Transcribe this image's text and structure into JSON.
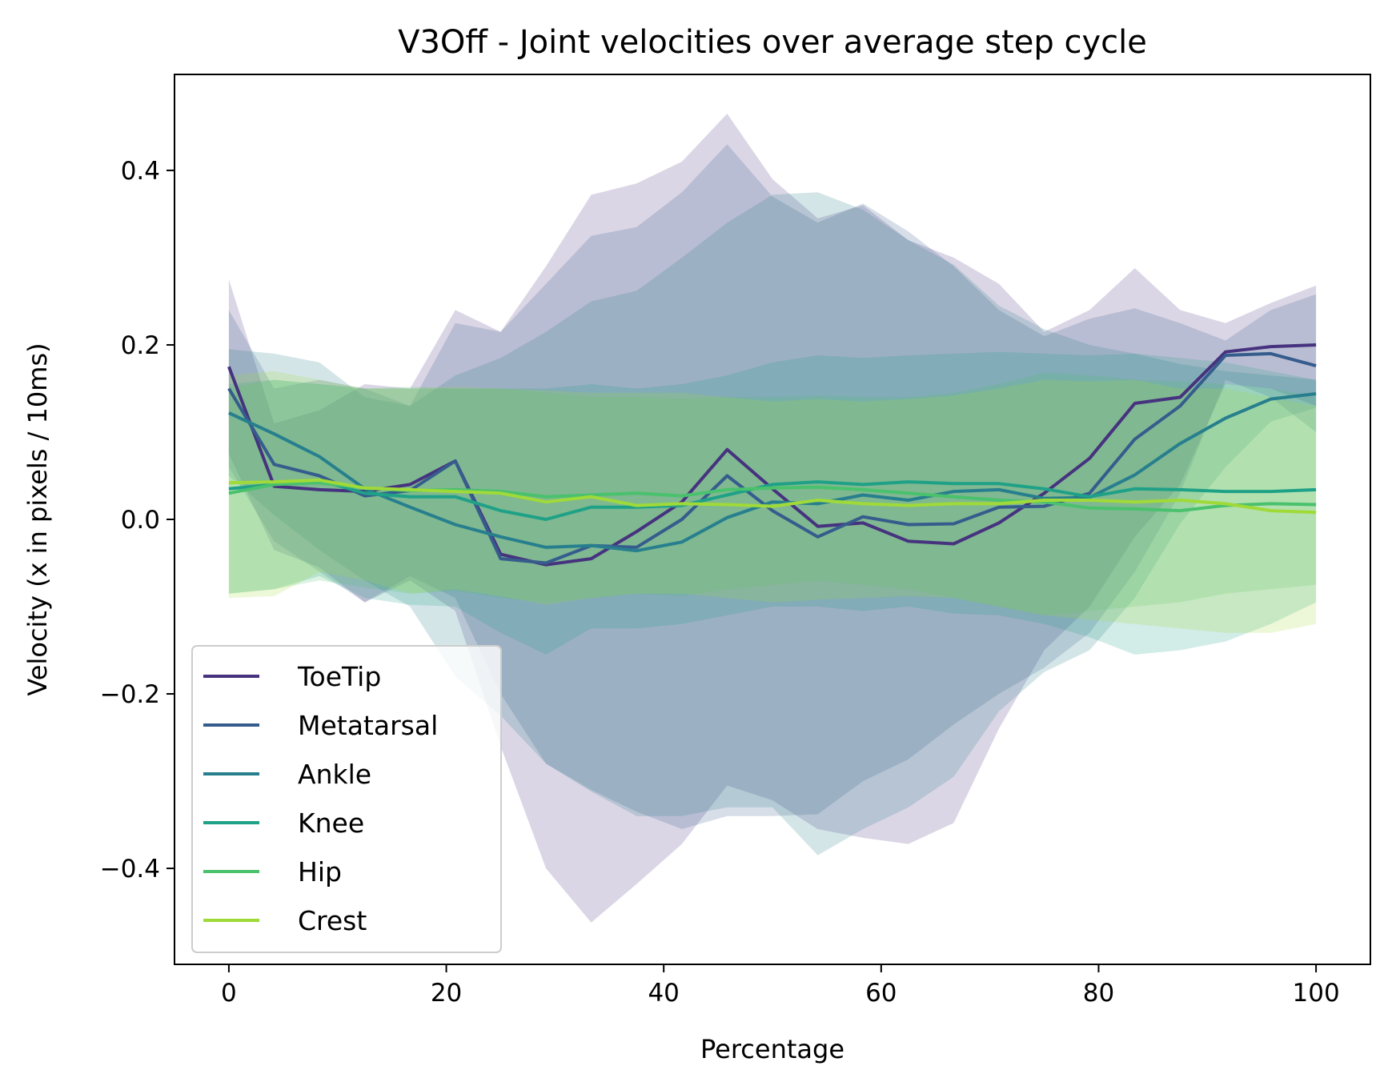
{
  "chart_data": {
    "type": "line",
    "title": "V3Off - Joint velocities over average step cycle",
    "xlabel": "Percentage",
    "ylabel": "Velocity (x in pixels / 10ms)",
    "xlim": [
      -5,
      105
    ],
    "ylim": [
      -0.51,
      0.51
    ],
    "xticks": [
      0,
      20,
      40,
      60,
      80,
      100
    ],
    "yticks": [
      -0.4,
      -0.2,
      0.0,
      0.2,
      0.4
    ],
    "xtick_labels": [
      "0",
      "20",
      "40",
      "60",
      "80",
      "100"
    ],
    "ytick_labels": [
      "−0.4",
      "−0.2",
      "0.0",
      "0.2",
      "0.4"
    ],
    "grid": false,
    "legend_position": "lower-left",
    "x": [
      0,
      4.17,
      8.33,
      12.5,
      16.67,
      20.83,
      25,
      29.17,
      33.33,
      37.5,
      41.67,
      45.83,
      50,
      54.17,
      58.33,
      62.5,
      66.67,
      70.83,
      75,
      79.17,
      83.33,
      87.5,
      91.67,
      95.83,
      100
    ],
    "series": [
      {
        "name": "ToeTip",
        "color": "#46327e",
        "values": [
          0.175,
          0.038,
          0.034,
          0.032,
          0.04,
          0.067,
          -0.04,
          -0.052,
          -0.045,
          -0.014,
          0.02,
          0.08,
          0.035,
          -0.008,
          -0.004,
          -0.025,
          -0.028,
          -0.004,
          0.03,
          0.07,
          0.133,
          0.14,
          0.192,
          0.198,
          0.2
        ],
        "upper": [
          0.275,
          0.11,
          0.125,
          0.155,
          0.15,
          0.24,
          0.215,
          0.29,
          0.372,
          0.385,
          0.41,
          0.465,
          0.39,
          0.345,
          0.36,
          0.32,
          0.3,
          0.27,
          0.215,
          0.24,
          0.288,
          0.24,
          0.225,
          0.248,
          0.268
        ],
        "lower": [
          0.075,
          -0.035,
          -0.055,
          -0.095,
          -0.07,
          -0.105,
          -0.26,
          -0.4,
          -0.462,
          -0.418,
          -0.372,
          -0.305,
          -0.322,
          -0.355,
          -0.365,
          -0.372,
          -0.348,
          -0.24,
          -0.15,
          -0.1,
          -0.02,
          0.04,
          0.155,
          0.15,
          0.13
        ]
      },
      {
        "name": "Metatarsal",
        "color": "#365c8d",
        "values": [
          0.15,
          0.063,
          0.05,
          0.027,
          0.033,
          0.067,
          -0.045,
          -0.05,
          -0.03,
          -0.032,
          0.0,
          0.05,
          0.01,
          -0.02,
          0.003,
          -0.006,
          -0.005,
          0.014,
          0.015,
          0.03,
          0.092,
          0.13,
          0.188,
          0.19,
          0.176
        ],
        "upper": [
          0.24,
          0.15,
          0.16,
          0.15,
          0.13,
          0.225,
          0.215,
          0.27,
          0.325,
          0.335,
          0.375,
          0.43,
          0.37,
          0.34,
          0.362,
          0.33,
          0.29,
          0.24,
          0.21,
          0.23,
          0.242,
          0.225,
          0.205,
          0.24,
          0.258
        ],
        "lower": [
          0.06,
          -0.025,
          -0.06,
          -0.095,
          -0.065,
          -0.09,
          -0.2,
          -0.28,
          -0.31,
          -0.335,
          -0.355,
          -0.34,
          -0.34,
          -0.338,
          -0.3,
          -0.275,
          -0.235,
          -0.2,
          -0.17,
          -0.13,
          -0.06,
          0.03,
          0.16,
          0.14,
          0.1
        ]
      },
      {
        "name": "Ankle",
        "color": "#277f8e",
        "values": [
          0.122,
          0.098,
          0.072,
          0.035,
          0.014,
          -0.006,
          -0.02,
          -0.032,
          -0.03,
          -0.036,
          -0.026,
          0.002,
          0.02,
          0.018,
          0.028,
          0.022,
          0.032,
          0.034,
          0.024,
          0.025,
          0.051,
          0.087,
          0.116,
          0.138,
          0.144
        ],
        "upper": [
          0.195,
          0.19,
          0.18,
          0.14,
          0.13,
          0.165,
          0.185,
          0.215,
          0.25,
          0.262,
          0.3,
          0.34,
          0.372,
          0.375,
          0.355,
          0.32,
          0.292,
          0.245,
          0.218,
          0.2,
          0.19,
          0.178,
          0.17,
          0.165,
          0.16
        ],
        "lower": [
          0.05,
          0.005,
          -0.035,
          -0.07,
          -0.1,
          -0.18,
          -0.225,
          -0.28,
          -0.312,
          -0.34,
          -0.34,
          -0.33,
          -0.33,
          -0.385,
          -0.355,
          -0.33,
          -0.295,
          -0.22,
          -0.175,
          -0.15,
          -0.09,
          -0.005,
          0.06,
          0.112,
          0.128
        ]
      },
      {
        "name": "Knee",
        "color": "#1fa187",
        "values": [
          0.035,
          0.04,
          0.045,
          0.03,
          0.026,
          0.026,
          0.01,
          0.0,
          0.014,
          0.014,
          0.016,
          0.028,
          0.04,
          0.043,
          0.04,
          0.043,
          0.041,
          0.041,
          0.035,
          0.026,
          0.035,
          0.034,
          0.032,
          0.032,
          0.034
        ],
        "upper": [
          0.155,
          0.16,
          0.155,
          0.15,
          0.15,
          0.15,
          0.15,
          0.15,
          0.155,
          0.15,
          0.155,
          0.165,
          0.18,
          0.188,
          0.185,
          0.188,
          0.19,
          0.192,
          0.19,
          0.188,
          0.19,
          0.185,
          0.18,
          0.17,
          0.16
        ],
        "lower": [
          -0.085,
          -0.08,
          -0.065,
          -0.09,
          -0.098,
          -0.1,
          -0.13,
          -0.155,
          -0.125,
          -0.125,
          -0.12,
          -0.11,
          -0.1,
          -0.1,
          -0.105,
          -0.1,
          -0.108,
          -0.11,
          -0.12,
          -0.135,
          -0.155,
          -0.15,
          -0.14,
          -0.12,
          -0.095
        ]
      },
      {
        "name": "Hip",
        "color": "#4ac16d",
        "values": [
          0.03,
          0.04,
          0.042,
          0.036,
          0.033,
          0.034,
          0.032,
          0.026,
          0.028,
          0.03,
          0.027,
          0.034,
          0.036,
          0.037,
          0.034,
          0.03,
          0.026,
          0.022,
          0.02,
          0.013,
          0.012,
          0.01,
          0.016,
          0.018,
          0.017
        ],
        "upper": [
          0.15,
          0.16,
          0.155,
          0.15,
          0.152,
          0.15,
          0.15,
          0.145,
          0.14,
          0.14,
          0.138,
          0.14,
          0.14,
          0.142,
          0.14,
          0.14,
          0.145,
          0.155,
          0.168,
          0.165,
          0.16,
          0.158,
          0.155,
          0.15,
          0.14
        ],
        "lower": [
          -0.085,
          -0.08,
          -0.07,
          -0.078,
          -0.085,
          -0.082,
          -0.09,
          -0.095,
          -0.09,
          -0.085,
          -0.088,
          -0.08,
          -0.075,
          -0.07,
          -0.075,
          -0.08,
          -0.09,
          -0.1,
          -0.11,
          -0.105,
          -0.1,
          -0.095,
          -0.085,
          -0.08,
          -0.075
        ]
      },
      {
        "name": "Crest",
        "color": "#a0da39",
        "values": [
          0.042,
          0.043,
          0.045,
          0.036,
          0.034,
          0.032,
          0.03,
          0.02,
          0.026,
          0.016,
          0.018,
          0.017,
          0.015,
          0.022,
          0.018,
          0.016,
          0.018,
          0.018,
          0.022,
          0.022,
          0.02,
          0.022,
          0.018,
          0.01,
          0.008
        ],
        "upper": [
          0.165,
          0.17,
          0.16,
          0.15,
          0.15,
          0.152,
          0.15,
          0.148,
          0.145,
          0.145,
          0.145,
          0.14,
          0.135,
          0.138,
          0.135,
          0.138,
          0.142,
          0.15,
          0.16,
          0.158,
          0.16,
          0.15,
          0.15,
          0.14,
          0.13
        ],
        "lower": [
          -0.09,
          -0.088,
          -0.06,
          -0.07,
          -0.085,
          -0.08,
          -0.088,
          -0.098,
          -0.09,
          -0.085,
          -0.085,
          -0.09,
          -0.095,
          -0.092,
          -0.09,
          -0.088,
          -0.09,
          -0.1,
          -0.11,
          -0.115,
          -0.12,
          -0.125,
          -0.13,
          -0.13,
          -0.12
        ]
      }
    ]
  }
}
